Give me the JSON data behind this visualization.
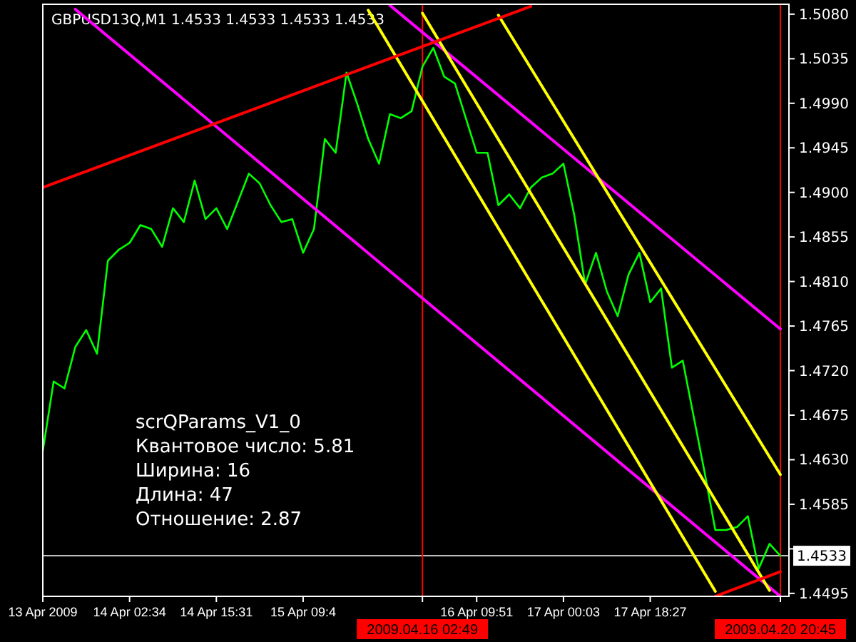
{
  "chart_data": {
    "type": "line",
    "title": "GBPUSD13Q,M1  1.4533 1.4533 1.4533 1.4533",
    "annotations": [
      "scrQParams_V1_0",
      "Квантовое число: 5.81",
      "Ширина: 16",
      "Длина: 47",
      "Отношение: 2.87"
    ],
    "categories": [
      "13 Apr 2009",
      null,
      null,
      null,
      null,
      null,
      null,
      null,
      "14 Apr 02:34",
      null,
      null,
      null,
      null,
      null,
      null,
      null,
      "14 Apr 15:31",
      null,
      null,
      null,
      null,
      null,
      null,
      null,
      "15 Apr 09:4",
      null,
      null,
      null,
      null,
      null,
      null,
      null,
      null,
      null,
      null,
      "2009.04.16 02:49",
      null,
      null,
      null,
      null,
      "16 Apr 09:51",
      null,
      null,
      null,
      null,
      null,
      null,
      null,
      "17 Apr 00:03",
      null,
      null,
      null,
      null,
      null,
      null,
      null,
      "17 Apr 18:27",
      null,
      null,
      null,
      null,
      null,
      null,
      null,
      null,
      null,
      null,
      null,
      "2009.04.20 20:45"
    ],
    "ylim": [
      1.4492,
      1.509
    ],
    "yticks": [
      {
        "value": 1.508,
        "label": "1.5080"
      },
      {
        "value": 1.5035,
        "label": "1.5035"
      },
      {
        "value": 1.499,
        "label": "1.4990"
      },
      {
        "value": 1.4945,
        "label": "1.4945"
      },
      {
        "value": 1.49,
        "label": "1.4900"
      },
      {
        "value": 1.4855,
        "label": "1.4855"
      },
      {
        "value": 1.481,
        "label": "1.4810"
      },
      {
        "value": 1.4765,
        "label": "1.4765"
      },
      {
        "value": 1.472,
        "label": "1.4720"
      },
      {
        "value": 1.4675,
        "label": "1.4675"
      },
      {
        "value": 1.463,
        "label": "1.4630"
      },
      {
        "value": 1.4585,
        "label": "1.4585"
      },
      {
        "value": 1.454,
        "label": null
      },
      {
        "value": 1.4495,
        "label": "1.4495"
      }
    ],
    "ref_lines": [
      {
        "axis": "x",
        "value": "2009.04.16 02:49",
        "color": "#ff0000"
      },
      {
        "axis": "x",
        "value": "2009.04.20 20:45",
        "color": "#ff0000"
      },
      {
        "axis": "y",
        "value": 1.4533,
        "label": "1.4533",
        "color": "#c0c0c0"
      }
    ],
    "series": [
      {
        "type": "line",
        "color": "#00ff00",
        "values": [
          1.4639,
          1.4709,
          1.4702,
          1.4744,
          1.4761,
          1.4737,
          1.4831,
          1.4842,
          1.4849,
          1.4867,
          1.4863,
          1.4845,
          1.4884,
          1.487,
          1.4912,
          1.4873,
          1.4884,
          1.4863,
          1.4891,
          1.4919,
          1.4909,
          1.4887,
          1.487,
          1.4873,
          1.4839,
          1.4863,
          1.4954,
          1.494,
          1.5021,
          1.4989,
          1.4954,
          1.4929,
          1.4979,
          1.4975,
          1.4982,
          1.5027,
          1.5046,
          1.5017,
          1.501,
          1.4975,
          1.494,
          1.494,
          1.4887,
          1.4898,
          1.4884,
          1.4905,
          1.4915,
          1.4919,
          1.4929,
          1.4877,
          1.4807,
          1.4839,
          1.48,
          1.4775,
          1.4817,
          1.4839,
          1.4789,
          1.4803,
          1.4723,
          1.473,
          1.4674,
          1.4618,
          1.4559,
          1.4559,
          1.4562,
          1.4573,
          1.452,
          1.4545,
          1.4533
        ]
      },
      {
        "type": "line",
        "color": "#ff00ff",
        "values": [
          null,
          null,
          null,
          1.5085,
          null,
          null,
          null,
          null,
          null,
          null,
          null,
          null,
          null,
          null,
          null,
          null,
          null,
          null,
          null,
          null,
          null,
          null,
          null,
          null,
          null,
          null,
          null,
          null,
          null,
          null,
          null,
          null,
          null,
          null,
          null,
          null,
          null,
          null,
          null,
          null,
          null,
          null,
          null,
          null,
          null,
          null,
          null,
          null,
          null,
          null,
          null,
          null,
          null,
          null,
          null,
          null,
          null,
          null,
          null,
          null,
          null,
          null,
          null,
          null,
          null,
          null,
          null,
          null,
          1.4492
        ]
      },
      {
        "type": "line",
        "color": "#ff00ff",
        "values": [
          null,
          null,
          null,
          null,
          null,
          null,
          null,
          null,
          null,
          null,
          null,
          null,
          null,
          null,
          null,
          null,
          null,
          null,
          null,
          null,
          null,
          null,
          null,
          null,
          null,
          null,
          null,
          null,
          null,
          null,
          null,
          null,
          1.5089,
          null,
          null,
          null,
          null,
          null,
          null,
          null,
          null,
          null,
          null,
          null,
          null,
          null,
          null,
          null,
          null,
          null,
          null,
          null,
          null,
          null,
          null,
          null,
          null,
          null,
          null,
          null,
          null,
          null,
          null,
          null,
          null,
          null,
          null,
          null,
          1.4762
        ]
      },
      {
        "type": "line",
        "color": "#ffff00",
        "values": [
          null,
          null,
          null,
          null,
          null,
          null,
          null,
          null,
          null,
          null,
          null,
          null,
          null,
          null,
          null,
          null,
          null,
          null,
          null,
          null,
          null,
          null,
          null,
          null,
          null,
          null,
          null,
          null,
          null,
          null,
          1.5084,
          null,
          null,
          null,
          null,
          null,
          null,
          null,
          null,
          null,
          null,
          null,
          null,
          null,
          null,
          null,
          null,
          null,
          null,
          null,
          null,
          null,
          null,
          null,
          null,
          null,
          null,
          null,
          null,
          null,
          null,
          null,
          1.4497,
          null,
          null,
          null,
          null,
          null,
          null
        ]
      },
      {
        "type": "line",
        "color": "#ffff00",
        "values": [
          null,
          null,
          null,
          null,
          null,
          null,
          null,
          null,
          null,
          null,
          null,
          null,
          null,
          null,
          null,
          null,
          null,
          null,
          null,
          null,
          null,
          null,
          null,
          null,
          null,
          null,
          null,
          null,
          null,
          null,
          null,
          null,
          null,
          null,
          null,
          1.5081,
          null,
          null,
          null,
          null,
          null,
          null,
          null,
          null,
          null,
          null,
          null,
          null,
          null,
          null,
          null,
          null,
          null,
          null,
          null,
          null,
          null,
          null,
          null,
          null,
          null,
          null,
          null,
          null,
          null,
          null,
          null,
          1.4498,
          null
        ]
      },
      {
        "type": "line",
        "color": "#ffff00",
        "values": [
          null,
          null,
          null,
          null,
          null,
          null,
          null,
          null,
          null,
          null,
          null,
          null,
          null,
          null,
          null,
          null,
          null,
          null,
          null,
          null,
          null,
          null,
          null,
          null,
          null,
          null,
          null,
          null,
          null,
          null,
          null,
          null,
          null,
          null,
          null,
          null,
          null,
          null,
          null,
          null,
          null,
          null,
          1.5079,
          null,
          null,
          null,
          null,
          null,
          null,
          null,
          null,
          null,
          null,
          null,
          null,
          null,
          null,
          null,
          null,
          null,
          null,
          null,
          null,
          null,
          null,
          null,
          null,
          null,
          1.4615
        ]
      },
      {
        "type": "line",
        "color": "#ff0000",
        "values": [
          1.4905,
          null,
          null,
          null,
          null,
          null,
          null,
          null,
          null,
          null,
          null,
          null,
          null,
          null,
          null,
          null,
          null,
          null,
          null,
          null,
          null,
          null,
          null,
          null,
          null,
          null,
          null,
          null,
          null,
          null,
          null,
          null,
          null,
          null,
          null,
          null,
          null,
          null,
          null,
          null,
          null,
          null,
          null,
          null,
          null,
          1.5088,
          null,
          null,
          null,
          null,
          null,
          null,
          null,
          null,
          null,
          null,
          null,
          null,
          null,
          null,
          null,
          null,
          null,
          null,
          null,
          null,
          null,
          null,
          null
        ]
      },
      {
        "type": "line",
        "color": "#ff0000",
        "values": [
          null,
          null,
          null,
          null,
          null,
          null,
          null,
          null,
          null,
          null,
          null,
          null,
          null,
          null,
          null,
          null,
          null,
          null,
          null,
          null,
          null,
          null,
          null,
          null,
          null,
          null,
          null,
          null,
          null,
          null,
          null,
          null,
          null,
          null,
          null,
          null,
          null,
          null,
          null,
          null,
          null,
          null,
          null,
          null,
          null,
          null,
          null,
          null,
          null,
          null,
          null,
          null,
          null,
          null,
          null,
          null,
          null,
          null,
          null,
          null,
          null,
          null,
          1.4492,
          null,
          null,
          null,
          null,
          null,
          1.4517
        ]
      }
    ]
  }
}
